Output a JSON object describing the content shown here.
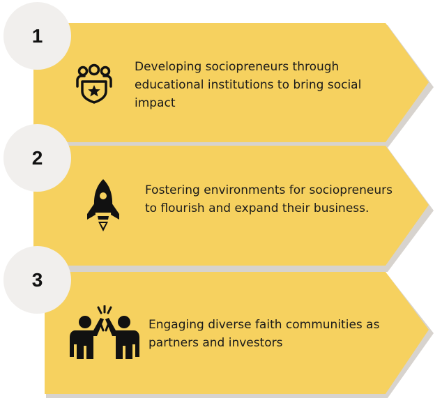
{
  "colors": {
    "panel": "#f6d15f",
    "shadow": "#c9c4be",
    "circle": "#f1efed",
    "ink": "#111111"
  },
  "steps": [
    {
      "number": "1",
      "icon": "team-badge-icon",
      "text": "Developing sociopreneurs through educational institutions to bring social impact"
    },
    {
      "number": "2",
      "icon": "rocket-icon",
      "text": "Fostering environments for sociopreneurs to flourish and expand their business."
    },
    {
      "number": "3",
      "icon": "high-five-icon",
      "text": "Engaging diverse faith communities as partners and investors"
    }
  ]
}
